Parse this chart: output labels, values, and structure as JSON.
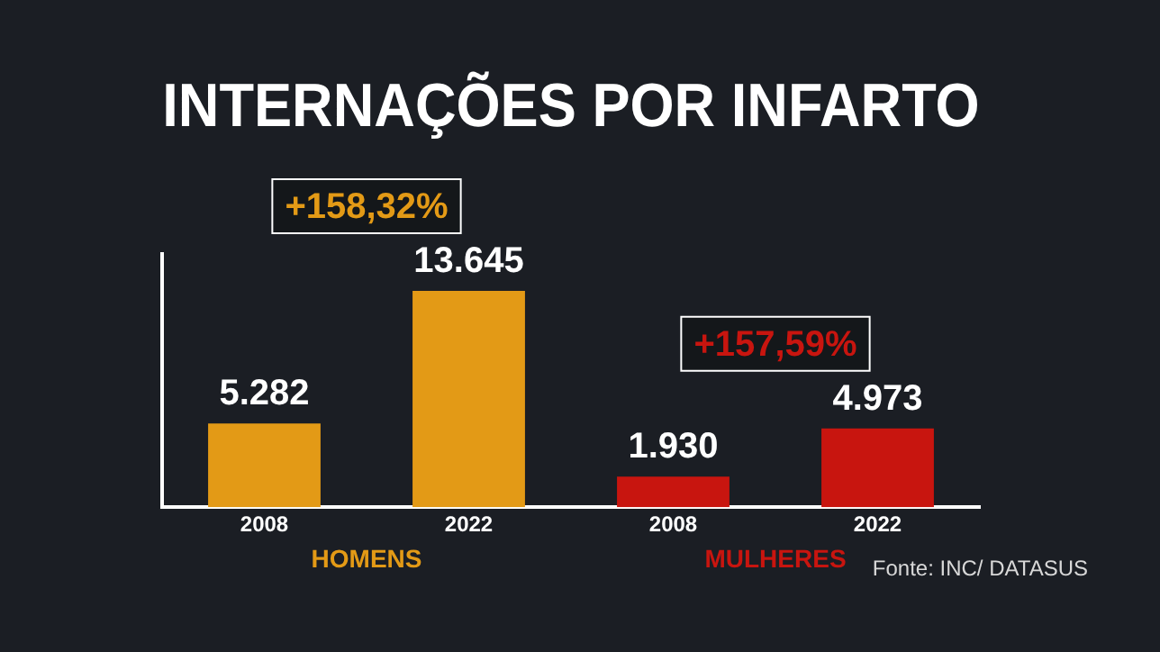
{
  "chart_data": {
    "type": "bar",
    "title": "INTERNAÇÕES POR INFARTO",
    "categories": [
      "2008",
      "2022",
      "2008",
      "2022"
    ],
    "series": [
      {
        "name": "HOMENS",
        "color": "#e39a16",
        "values": [
          5282,
          13645,
          null,
          null
        ],
        "value_labels": [
          "5.282",
          "13.645",
          null,
          null
        ]
      },
      {
        "name": "MULHERES",
        "color": "#c8150f",
        "values": [
          null,
          null,
          1930,
          4973
        ],
        "value_labels": [
          null,
          null,
          "1.930",
          "4.973"
        ]
      }
    ],
    "annotations": [
      "+158,32%",
      "+157,59%",
      "Fonte: INC/ DATASUS"
    ],
    "grid": false,
    "legend": false
  }
}
